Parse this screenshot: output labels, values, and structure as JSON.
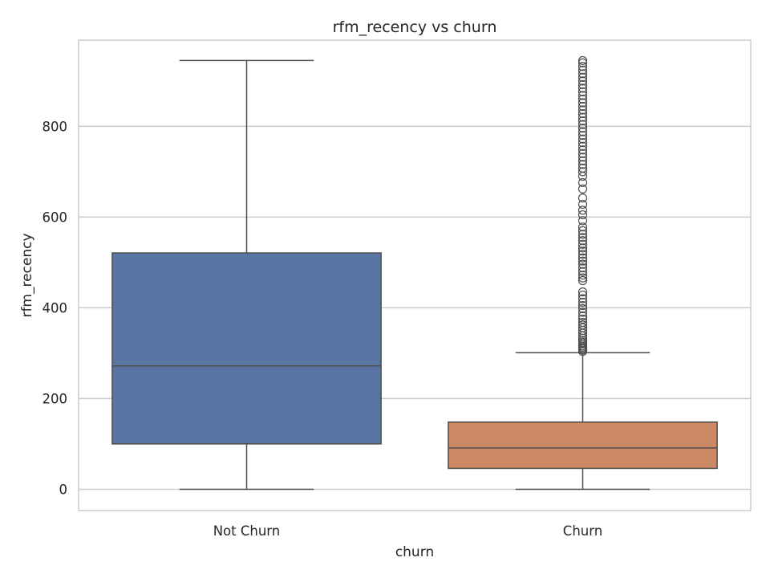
{
  "chart_data": {
    "type": "box",
    "title": "rfm_recency vs churn",
    "xlabel": "churn",
    "ylabel": "rfm_recency",
    "categories": [
      "Not Churn",
      "Churn"
    ],
    "ylim": [
      -47,
      990
    ],
    "yticks": [
      0,
      200,
      400,
      600,
      800
    ],
    "grid": true,
    "boxes": [
      {
        "category": "Not Churn",
        "color": "#5975a4",
        "whisker_low": 0,
        "q1": 100,
        "median": 272,
        "q3": 521,
        "whisker_high": 945,
        "outliers": []
      },
      {
        "category": "Churn",
        "color": "#cc8963",
        "whisker_low": 0,
        "q1": 46,
        "median": 91,
        "q3": 148,
        "whisker_high": 301,
        "outliers": [
          304,
          307,
          310,
          313,
          316,
          320,
          324,
          328,
          333,
          338,
          344,
          350,
          356,
          362,
          368,
          375,
          382,
          390,
          398,
          405,
          412,
          420,
          428,
          435,
          460,
          466,
          472,
          480,
          488,
          496,
          503,
          510,
          518,
          525,
          532,
          540,
          548,
          555,
          562,
          570,
          578,
          592,
          605,
          615,
          628,
          642,
          662,
          676,
          690,
          700,
          708,
          716,
          724,
          732,
          740,
          748,
          756,
          764,
          772,
          780,
          788,
          796,
          804,
          812,
          820,
          828,
          836,
          844,
          852,
          860,
          868,
          876,
          884,
          892,
          900,
          908,
          916,
          924,
          932,
          940,
          945
        ]
      }
    ]
  }
}
